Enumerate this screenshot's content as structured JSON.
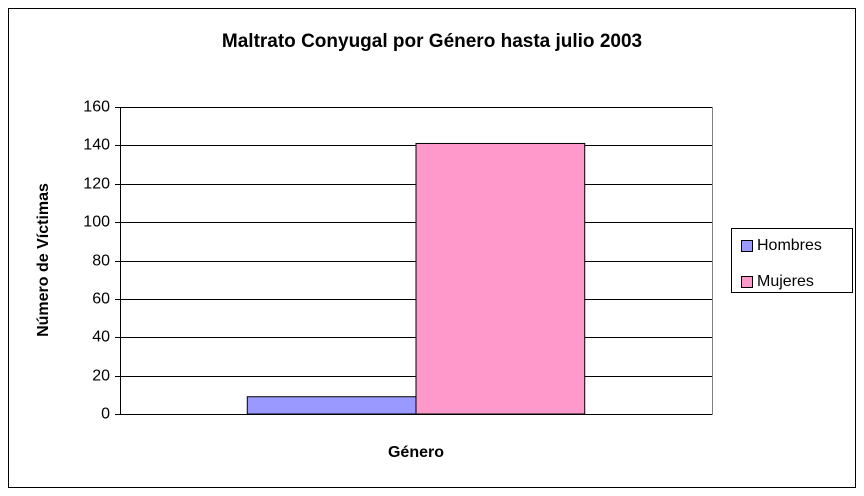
{
  "chart_data": {
    "type": "bar",
    "title": "Maltrato Conyugal por Género hasta julio 2003",
    "x_label": "Género",
    "y_label": "Número de Víctimas",
    "categories": [
      null
    ],
    "series": [
      {
        "name": "Hombres",
        "color": "#9999ff",
        "values": [
          9
        ]
      },
      {
        "name": "Mujeres",
        "color": "#ff99cc",
        "values": [
          141
        ]
      }
    ],
    "ylim": [
      0,
      160
    ],
    "yticks": [
      0,
      20,
      40,
      60,
      80,
      100,
      120,
      140,
      160
    ],
    "grid": true,
    "legend": "right"
  }
}
